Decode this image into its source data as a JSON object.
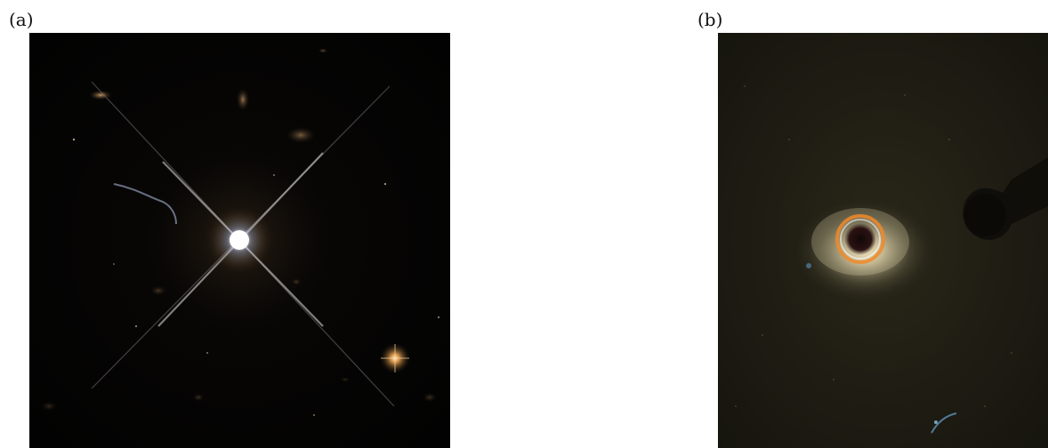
{
  "figure": {
    "panels": [
      {
        "label": "(a)"
      },
      {
        "label": "(b)"
      }
    ]
  },
  "colors": {
    "space_dark": "#050403",
    "star_core": "#ffffff",
    "star_glow": "#f2d3a0",
    "dust_glow": "#d8c79a",
    "ring_orange": "#f08a2a"
  }
}
